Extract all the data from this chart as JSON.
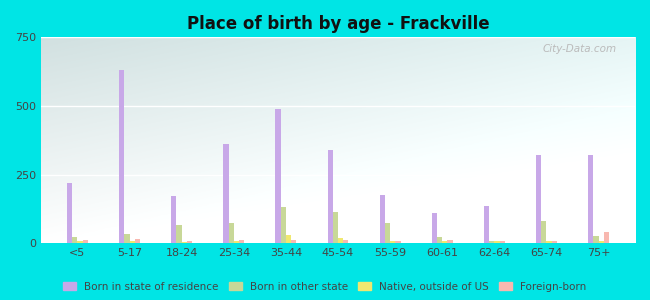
{
  "title": "Place of birth by age - Frackville",
  "categories": [
    "<5",
    "5-17",
    "18-24",
    "25-34",
    "35-44",
    "45-54",
    "55-59",
    "60-61",
    "62-64",
    "65-74",
    "75+"
  ],
  "series": {
    "Born in state of residence": [
      220,
      630,
      170,
      360,
      490,
      340,
      175,
      110,
      135,
      320,
      320
    ],
    "Born in other state": [
      22,
      35,
      65,
      75,
      130,
      115,
      75,
      22,
      8,
      80,
      25
    ],
    "Native, outside of US": [
      8,
      8,
      4,
      8,
      30,
      18,
      8,
      8,
      8,
      8,
      8
    ],
    "Foreign-born": [
      12,
      15,
      8,
      12,
      12,
      12,
      8,
      12,
      8,
      8,
      40
    ]
  },
  "colors": {
    "Born in state of residence": "#c8a8e8",
    "Born in other state": "#c8d898",
    "Native, outside of US": "#f0e870",
    "Foreign-born": "#f8b8b0"
  },
  "ylim": [
    0,
    750
  ],
  "yticks": [
    0,
    250,
    500,
    750
  ],
  "outer_bg": "#00e5e5",
  "watermark": "City-Data.com",
  "legend_labels": [
    "Born in state of residence",
    "Born in other state",
    "Native, outside of US",
    "Foreign-born"
  ]
}
